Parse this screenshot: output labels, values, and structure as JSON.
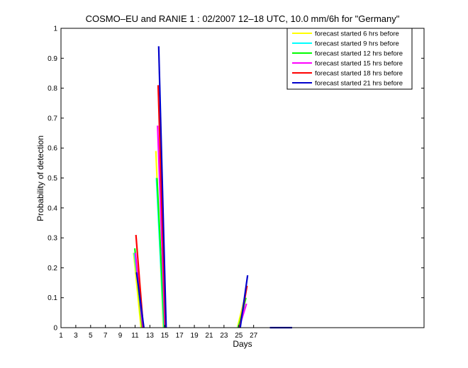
{
  "chart_data": {
    "type": "line",
    "title": "COSMO–EU and RANIE 1 : 02/2007 12–18 UTC, 10.0 mm/6h for \"Germany\"",
    "xlabel": "Days",
    "ylabel": "Probability of detection",
    "xlim": [
      1,
      50
    ],
    "ylim": [
      0,
      1
    ],
    "x_ticks": [
      1,
      3,
      5,
      7,
      9,
      11,
      13,
      15,
      17,
      19,
      21,
      23,
      25,
      27
    ],
    "y_ticks": [
      0,
      0.1,
      0.2,
      0.3,
      0.4,
      0.5,
      0.6,
      0.7,
      0.8,
      0.9,
      1
    ],
    "y_tick_labels": [
      "0",
      "0.1",
      "0.2",
      "0.3",
      "0.4",
      "0.5",
      "0.6",
      "0.7",
      "0.8",
      "0.9",
      "1"
    ],
    "grid": false,
    "legend_position": "top-right",
    "series": [
      {
        "name": "forecast started 6 hrs before",
        "color": "#ffff00",
        "segments": [
          [
            [
              11,
              0.25
            ],
            [
              12,
              0.0
            ]
          ],
          [
            [
              14,
              0.59
            ],
            [
              15,
              0.0
            ]
          ],
          [
            [
              25,
              0.0
            ],
            [
              26,
              0.1
            ]
          ]
        ]
      },
      {
        "name": "forecast started 9 hrs before",
        "color": "#00ffff",
        "segments": [
          [
            [
              11,
              0.25
            ],
            [
              12,
              0.05
            ]
          ],
          [
            [
              14,
              0.5
            ],
            [
              15,
              0.0
            ]
          ],
          [
            [
              25,
              0.0
            ],
            [
              26,
              0.07
            ]
          ]
        ]
      },
      {
        "name": "forecast started 12 hrs before",
        "color": "#00ff00",
        "segments": [
          [
            [
              11,
              0.265
            ],
            [
              12,
              0.0
            ]
          ],
          [
            [
              14,
              0.5
            ],
            [
              15,
              0.0
            ]
          ],
          [
            [
              25,
              0.0
            ],
            [
              26,
              0.1
            ]
          ]
        ]
      },
      {
        "name": "forecast started 15 hrs before",
        "color": "#ff00ff",
        "segments": [
          [
            [
              11,
              0.25
            ],
            [
              12,
              0.0
            ]
          ],
          [
            [
              14,
              0.675
            ],
            [
              15,
              0.0
            ]
          ],
          [
            [
              25,
              0.0
            ],
            [
              26,
              0.08
            ]
          ]
        ]
      },
      {
        "name": "forecast started 18 hrs before",
        "color": "#ff0000",
        "segments": [
          [
            [
              11,
              0.31
            ],
            [
              12,
              0.0
            ]
          ],
          [
            [
              14,
              0.81
            ],
            [
              15,
              0.0
            ]
          ],
          [
            [
              25,
              0.0
            ],
            [
              26,
              0.14
            ]
          ]
        ]
      },
      {
        "name": "forecast started 21 hrs before",
        "color": "#0000cc",
        "segments": [
          [
            [
              11,
              0.185
            ],
            [
              12,
              0.0
            ]
          ],
          [
            [
              14,
              0.94
            ],
            [
              15,
              0.0
            ]
          ],
          [
            [
              25,
              0.0
            ],
            [
              26,
              0.175
            ]
          ],
          [
            [
              29,
              0.0
            ],
            [
              32,
              0.0
            ]
          ]
        ]
      }
    ]
  }
}
